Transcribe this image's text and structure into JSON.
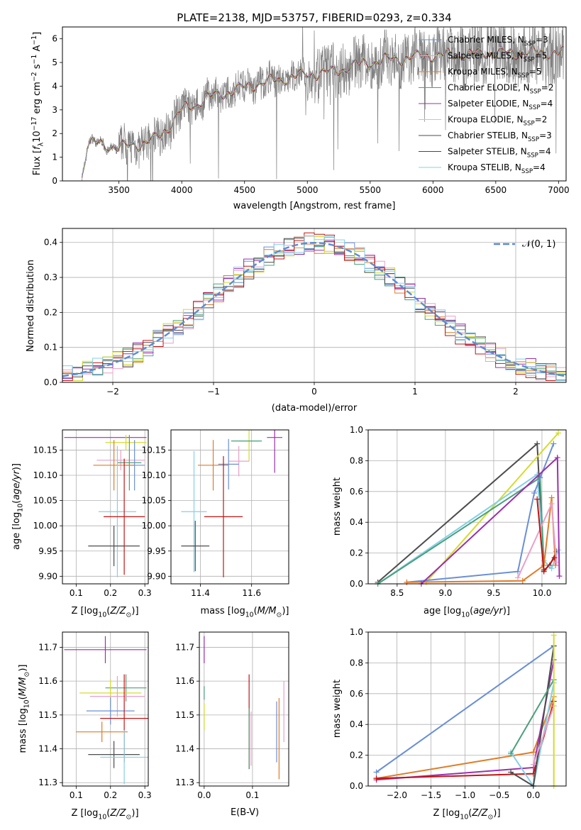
{
  "chart_data": [
    {
      "type": "line",
      "title": "PLATE=2138, MJD=53757, FIBERID=0293, z=0.334",
      "xlabel": "wavelength [Angstrom, rest frame]",
      "ylabel_parts": [
        "Flux [",
        "f",
        "λ",
        "10",
        "−17",
        " erg cm",
        "−2",
        " s",
        "−1",
        " A",
        "−1",
        "]"
      ],
      "xlim": [
        3050,
        7060
      ],
      "ylim": [
        0,
        6.5
      ],
      "xticks": [
        3500,
        4000,
        4500,
        5000,
        5500,
        6000,
        6500,
        7000
      ],
      "yticks": [
        0,
        1,
        2,
        3,
        4,
        5,
        6
      ],
      "grid": false,
      "legend_position": "top-right",
      "observed_color": "#808080",
      "series": [
        {
          "name": "Chabrier MILES",
          "nssp": 3,
          "color": "#6a8fd6"
        },
        {
          "name": "Salpeter MILES",
          "nssp": 5,
          "color": "#e8a0c9"
        },
        {
          "name": "Kroupa MILES",
          "nssp": 5,
          "color": "#e07b26"
        },
        {
          "name": "Chabrier ELODIE",
          "nssp": 2,
          "color": "#4aa07a"
        },
        {
          "name": "Salpeter ELODIE",
          "nssp": 4,
          "color": "#9b2fae"
        },
        {
          "name": "Kroupa ELODIE",
          "nssp": 2,
          "color": "#d4dc2c"
        },
        {
          "name": "Chabrier STELIB",
          "nssp": 3,
          "color": "#4d4d4d"
        },
        {
          "name": "Salpeter STELIB",
          "nssp": 4,
          "color": "#c41414"
        },
        {
          "name": "Kroupa STELIB",
          "nssp": 4,
          "color": "#84d0e6"
        }
      ],
      "spectrum_anchors": {
        "x": [
          3200,
          3250,
          3300,
          3400,
          3500,
          3600,
          3700,
          3800,
          3900,
          4000,
          4100,
          4200,
          4400,
          4600,
          4800,
          5000,
          5200,
          5400,
          5600,
          5800,
          6000,
          6200,
          6400,
          6600,
          6800,
          7000
        ],
        "y": [
          0.1,
          1.5,
          1.6,
          1.5,
          1.4,
          1.5,
          1.6,
          1.8,
          2.3,
          3.0,
          3.2,
          3.5,
          3.8,
          4.1,
          4.3,
          4.5,
          4.6,
          4.9,
          5.1,
          5.2,
          5.3,
          5.3,
          5.4,
          5.4,
          5.4,
          5.4
        ]
      }
    },
    {
      "type": "bar",
      "xlabel": "(data-model)/error",
      "ylabel": "Normed distribution",
      "xlim": [
        -2.5,
        2.5
      ],
      "ylim": [
        0,
        0.44
      ],
      "xticks": [
        -2,
        -1,
        0,
        1,
        2
      ],
      "yticks": [
        0.0,
        0.1,
        0.2,
        0.3,
        0.4
      ],
      "grid": true,
      "legend_position": "top-right",
      "reference_curve": {
        "label": "𝒩(0, 1)",
        "color": "#5b8bd6",
        "dash": true
      },
      "bin_width": 0.1,
      "bin_start": -2.5
    },
    {
      "type": "scatter",
      "xlabel": "Z [log",
      "ylabel": "age  [log",
      "xlim": [
        0.06,
        0.31
      ],
      "ylim": [
        9.885,
        10.19
      ],
      "xticks": [
        0.1,
        0.2,
        0.3
      ],
      "yticks": [
        9.9,
        9.95,
        10.0,
        10.05,
        10.1,
        10.15
      ],
      "grid": true,
      "points": [
        {
          "x": 0.185,
          "y": 10.175,
          "xerr": 0.12,
          "yerr": 0.0,
          "color": "#9b2fae"
        },
        {
          "x": 0.245,
          "y": 10.165,
          "xerr": 0.06,
          "yerr": 0.015,
          "color": "#d4dc2c"
        },
        {
          "x": 0.23,
          "y": 10.13,
          "xerr": 0.07,
          "yerr": 0.02,
          "color": "#e8a0c9"
        },
        {
          "x": 0.255,
          "y": 10.125,
          "xerr": 0.035,
          "yerr": 0.055,
          "color": "#4aa07a"
        },
        {
          "x": 0.27,
          "y": 10.12,
          "xerr": 0.03,
          "yerr": 0.05,
          "color": "#6a8fd6"
        },
        {
          "x": 0.21,
          "y": 10.12,
          "xerr": 0.06,
          "yerr": 0.05,
          "color": "#e07b26"
        },
        {
          "x": 0.22,
          "y": 10.028,
          "xerr": 0.055,
          "yerr": 0.13,
          "color": "#84d0e6"
        },
        {
          "x": 0.24,
          "y": 10.018,
          "xerr": 0.06,
          "yerr": 0.115,
          "color": "#c41414"
        },
        {
          "x": 0.21,
          "y": 9.96,
          "xerr": 0.075,
          "yerr": 0.04,
          "color": "#4d4d4d"
        }
      ]
    },
    {
      "type": "scatter",
      "xlabel": "mass [log",
      "ylabel": "",
      "xlim": [
        11.285,
        11.745
      ],
      "ylim": [
        9.885,
        10.19
      ],
      "xticks": [
        11.4,
        11.6
      ],
      "yticks": [
        9.9,
        9.95,
        10.0,
        10.05,
        10.1,
        10.15
      ],
      "grid": true,
      "points": [
        {
          "x": 11.69,
          "y": 10.175,
          "xerr": 0.03,
          "yerr": 0.07,
          "color": "#9b2fae"
        },
        {
          "x": 11.59,
          "y": 10.168,
          "xerr": 0.04,
          "yerr": 0.04,
          "color": "#d4dc2c"
        },
        {
          "x": 11.58,
          "y": 10.168,
          "xerr": 0.06,
          "yerr": 0.0,
          "color": "#4aa07a"
        },
        {
          "x": 11.55,
          "y": 10.128,
          "xerr": 0.04,
          "yerr": 0.03,
          "color": "#e8a0c9"
        },
        {
          "x": 11.51,
          "y": 10.122,
          "xerr": 0.04,
          "yerr": 0.05,
          "color": "#6a8fd6"
        },
        {
          "x": 11.45,
          "y": 10.12,
          "xerr": 0.06,
          "yerr": 0.05,
          "color": "#e07b26"
        },
        {
          "x": 11.375,
          "y": 10.028,
          "xerr": 0.05,
          "yerr": 0.12,
          "color": "#84d0e6"
        },
        {
          "x": 11.49,
          "y": 10.018,
          "xerr": 0.075,
          "yerr": 0.12,
          "color": "#c41414"
        },
        {
          "x": 11.38,
          "y": 9.96,
          "xerr": 0.055,
          "yerr": 0.05,
          "color": "#4d4d4d"
        }
      ]
    },
    {
      "type": "line",
      "xlabel": "age  [log",
      "ylabel": "mass weight",
      "xlim": [
        8.2,
        10.25
      ],
      "ylim": [
        0,
        1.0
      ],
      "xticks": [
        8.5,
        9.0,
        9.5,
        10.0
      ],
      "yticks": [
        0.0,
        0.2,
        0.4,
        0.6,
        0.8,
        1.0
      ],
      "grid": true,
      "series": [
        {
          "color": "#4d4d4d",
          "x": [
            8.3,
            9.95,
            10.02,
            10.08,
            10.15
          ],
          "y": [
            0.01,
            0.91,
            0.09,
            0.12,
            0.21
          ]
        },
        {
          "color": "#d4dc2c",
          "x": [
            8.8,
            10.17
          ],
          "y": [
            0.01,
            0.98
          ]
        },
        {
          "color": "#84d0e6",
          "x": [
            8.3,
            9.95,
            10.02,
            10.1,
            10.17
          ],
          "y": [
            0.0,
            0.71,
            0.15,
            0.1,
            0.22
          ]
        },
        {
          "color": "#4aa07a",
          "x": [
            8.3,
            9.98,
            10.02
          ],
          "y": [
            0.0,
            0.69,
            0.12
          ]
        },
        {
          "color": "#6a8fd6",
          "x": [
            8.6,
            9.75,
            9.92,
            10.12
          ],
          "y": [
            0.01,
            0.08,
            0.59,
            0.91
          ]
        },
        {
          "color": "#e07b26",
          "x": [
            8.6,
            9.8,
            10.02,
            10.1,
            10.14
          ],
          "y": [
            0.01,
            0.02,
            0.12,
            0.56,
            0.12
          ]
        },
        {
          "color": "#e8a0c9",
          "x": [
            9.75,
            10.1,
            10.15
          ],
          "y": [
            0.04,
            0.52,
            0.14
          ]
        },
        {
          "color": "#c41414",
          "x": [
            9.95,
            10.02,
            10.13
          ],
          "y": [
            0.55,
            0.08,
            0.17
          ]
        },
        {
          "color": "#9b2fae",
          "x": [
            8.75,
            10.16,
            10.18
          ],
          "y": [
            0.0,
            0.82,
            0.05
          ]
        }
      ]
    },
    {
      "type": "scatter",
      "xlabel": "Z [log",
      "ylabel": "mass [log",
      "xlim": [
        0.06,
        0.31
      ],
      "ylim": [
        11.29,
        11.745
      ],
      "xticks": [
        0.1,
        0.2,
        0.3
      ],
      "yticks": [
        11.3,
        11.4,
        11.5,
        11.6,
        11.7
      ],
      "grid": true,
      "points": [
        {
          "x": 0.185,
          "y": 11.693,
          "xerr": 0.12,
          "yerr": 0.04,
          "color": "#9b2fae"
        },
        {
          "x": 0.245,
          "y": 11.58,
          "xerr": 0.06,
          "yerr": 0.04,
          "color": "#4aa07a"
        },
        {
          "x": 0.2,
          "y": 11.565,
          "xerr": 0.09,
          "yerr": 0.04,
          "color": "#d4dc2c"
        },
        {
          "x": 0.22,
          "y": 11.555,
          "xerr": 0.08,
          "yerr": 0.06,
          "color": "#e8a0c9"
        },
        {
          "x": 0.2,
          "y": 11.512,
          "xerr": 0.07,
          "yerr": 0.04,
          "color": "#6a8fd6"
        },
        {
          "x": 0.24,
          "y": 11.49,
          "xerr": 0.07,
          "yerr": 0.13,
          "color": "#c41414"
        },
        {
          "x": 0.175,
          "y": 11.45,
          "xerr": 0.075,
          "yerr": 0.03,
          "color": "#e07b26"
        },
        {
          "x": 0.21,
          "y": 11.383,
          "xerr": 0.075,
          "yerr": 0.04,
          "color": "#4d4d4d"
        },
        {
          "x": 0.24,
          "y": 11.375,
          "xerr": 0.07,
          "yerr": 0.08,
          "color": "#84d0e6"
        }
      ]
    },
    {
      "type": "scatter",
      "xlabel": "E(B-V)",
      "ylabel": "",
      "xlim": [
        -0.01,
        0.175
      ],
      "ylim": [
        11.29,
        11.745
      ],
      "xticks": [
        0.0,
        0.1
      ],
      "yticks": [
        11.3,
        11.4,
        11.5,
        11.6,
        11.7
      ],
      "grid": true,
      "points": [
        {
          "x": 0.0,
          "y": 11.693,
          "xerr": 0.0,
          "yerr": 0.04,
          "color": "#9b2fae"
        },
        {
          "x": 0.0,
          "y": 11.565,
          "xerr": 0.0,
          "yerr": 0.02,
          "color": "#4aa07a"
        },
        {
          "x": 0.0,
          "y": 11.495,
          "xerr": 0.0,
          "yerr": 0.04,
          "color": "#d4dc2c"
        },
        {
          "x": 0.093,
          "y": 11.48,
          "xerr": 0.0,
          "yerr": 0.14,
          "color": "#c41414"
        },
        {
          "x": 0.093,
          "y": 11.43,
          "xerr": 0.0,
          "yerr": 0.09,
          "color": "#4aa07a"
        },
        {
          "x": 0.097,
          "y": 11.43,
          "xerr": 0.0,
          "yerr": 0.08,
          "color": "#e8a0c9"
        },
        {
          "x": 0.15,
          "y": 11.45,
          "xerr": 0.0,
          "yerr": 0.09,
          "color": "#6a8fd6"
        },
        {
          "x": 0.155,
          "y": 11.43,
          "xerr": 0.0,
          "yerr": 0.12,
          "color": "#e07b26"
        },
        {
          "x": 0.165,
          "y": 11.51,
          "xerr": 0.0,
          "yerr": 0.09,
          "color": "#e8a0c9"
        }
      ]
    },
    {
      "type": "line",
      "xlabel": "Z [log",
      "ylabel": "mass weight",
      "xlim": [
        -2.42,
        0.48
      ],
      "ylim": [
        0,
        1.0
      ],
      "xticks": [
        -2.0,
        -1.5,
        -1.0,
        -0.5,
        0.0
      ],
      "yticks": [
        0.0,
        0.2,
        0.4,
        0.6,
        0.8,
        1.0
      ],
      "grid": true,
      "series": [
        {
          "color": "#6a8fd6",
          "x": [
            -2.3,
            0.3
          ],
          "y": [
            0.09,
            0.91
          ]
        },
        {
          "color": "#e07b26",
          "x": [
            -2.3,
            0.0,
            0.3
          ],
          "y": [
            0.05,
            0.22,
            0.58
          ]
        },
        {
          "color": "#9b2fae",
          "x": [
            -2.3,
            0.0,
            0.3
          ],
          "y": [
            0.04,
            0.12,
            0.82
          ]
        },
        {
          "color": "#c41414",
          "x": [
            -2.3,
            0.0,
            0.3
          ],
          "y": [
            0.05,
            0.08,
            0.55
          ]
        },
        {
          "color": "#84d0e6",
          "x": [
            -0.33,
            0.0,
            0.3
          ],
          "y": [
            0.22,
            0.0,
            0.67
          ]
        },
        {
          "color": "#4d4d4d",
          "x": [
            -0.33,
            0.0,
            0.3
          ],
          "y": [
            0.09,
            0.0,
            0.91
          ]
        },
        {
          "color": "#e8a0c9",
          "x": [
            0.0,
            0.3
          ],
          "y": [
            0.14,
            0.52
          ]
        },
        {
          "color": "#4aa07a",
          "x": [
            -0.33,
            0.3
          ],
          "y": [
            0.21,
            0.69
          ]
        },
        {
          "color": "#d4dc2c",
          "x": [
            0.3,
            0.3
          ],
          "y": [
            0.0,
            0.98
          ]
        }
      ]
    }
  ],
  "labels": {
    "odot": "⊙",
    "age_unit_mid": "age/yr",
    "mass_unit_mid": "M/M",
    "z_unit_mid": "Z/Z",
    "log_sub": "10",
    "nssp_prefix": "N",
    "nssp_sub": "SSP"
  }
}
